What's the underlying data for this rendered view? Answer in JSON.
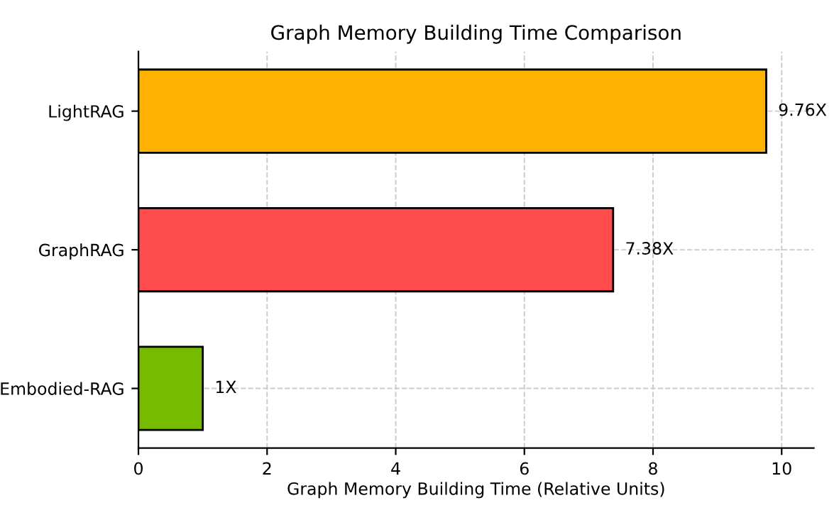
{
  "chart_data": {
    "type": "bar",
    "orientation": "horizontal",
    "title": "Graph Memory Building Time Comparison",
    "xlabel": "Graph Memory Building Time (Relative Units)",
    "categories": [
      "LightRAG",
      "GraphRAG",
      "Embodied-RAG"
    ],
    "values": [
      9.76,
      7.38,
      1
    ],
    "colors": [
      "#ffb300",
      "#ff4d4d",
      "#77bb00"
    ],
    "value_labels": [
      "9.76X",
      "7.38X",
      "1X"
    ],
    "xlim": [
      0,
      10.5
    ],
    "xticks": [
      0,
      2,
      4,
      6,
      8,
      10
    ],
    "grid": true
  }
}
